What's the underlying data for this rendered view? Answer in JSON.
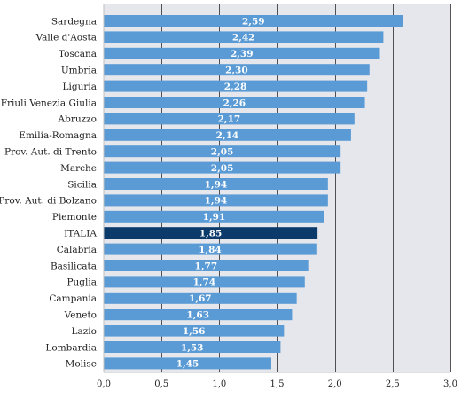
{
  "chart_data": {
    "type": "bar",
    "orientation": "horizontal",
    "categories": [
      "Sardegna",
      "Valle d'Aosta",
      "Toscana",
      "Umbria",
      "Liguria",
      "Friuli Venezia Giulia",
      "Abruzzo",
      "Emilia-Romagna",
      "Prov. Aut. di Trento",
      "Marche",
      "Sicilia",
      "Prov. Aut. di Bolzano",
      "Piemonte",
      "ITALIA",
      "Calabria",
      "Basilicata",
      "Puglia",
      "Campania",
      "Veneto",
      "Lazio",
      "Lombardia",
      "Molise"
    ],
    "values": [
      2.59,
      2.42,
      2.39,
      2.3,
      2.28,
      2.26,
      2.17,
      2.14,
      2.05,
      2.05,
      1.94,
      1.94,
      1.91,
      1.85,
      1.84,
      1.77,
      1.74,
      1.67,
      1.63,
      1.56,
      1.53,
      1.45
    ],
    "value_labels": [
      "2,59",
      "2,42",
      "2,39",
      "2,30",
      "2,28",
      "2,26",
      "2,17",
      "2,14",
      "2,05",
      "2,05",
      "1,94",
      "1,94",
      "1,91",
      "1,85",
      "1,84",
      "1,77",
      "1,74",
      "1,67",
      "1,63",
      "1,56",
      "1,53",
      "1,45"
    ],
    "highlight": "ITALIA",
    "xlim": [
      0,
      3.0
    ],
    "xticks": [
      0,
      0.5,
      1.0,
      1.5,
      2.0,
      2.5,
      3.0
    ],
    "xtick_labels": [
      "0,0",
      "0,5",
      "1,0",
      "1,5",
      "2,0",
      "2,5",
      "3,0"
    ],
    "grid": true,
    "colors": {
      "bar": "#5B9BD5",
      "bar_highlight": "#0B3A6B",
      "plot_background": "#E6E7EC",
      "gridline": "#2B2B2B",
      "value_text": "#FFFFFF"
    }
  }
}
